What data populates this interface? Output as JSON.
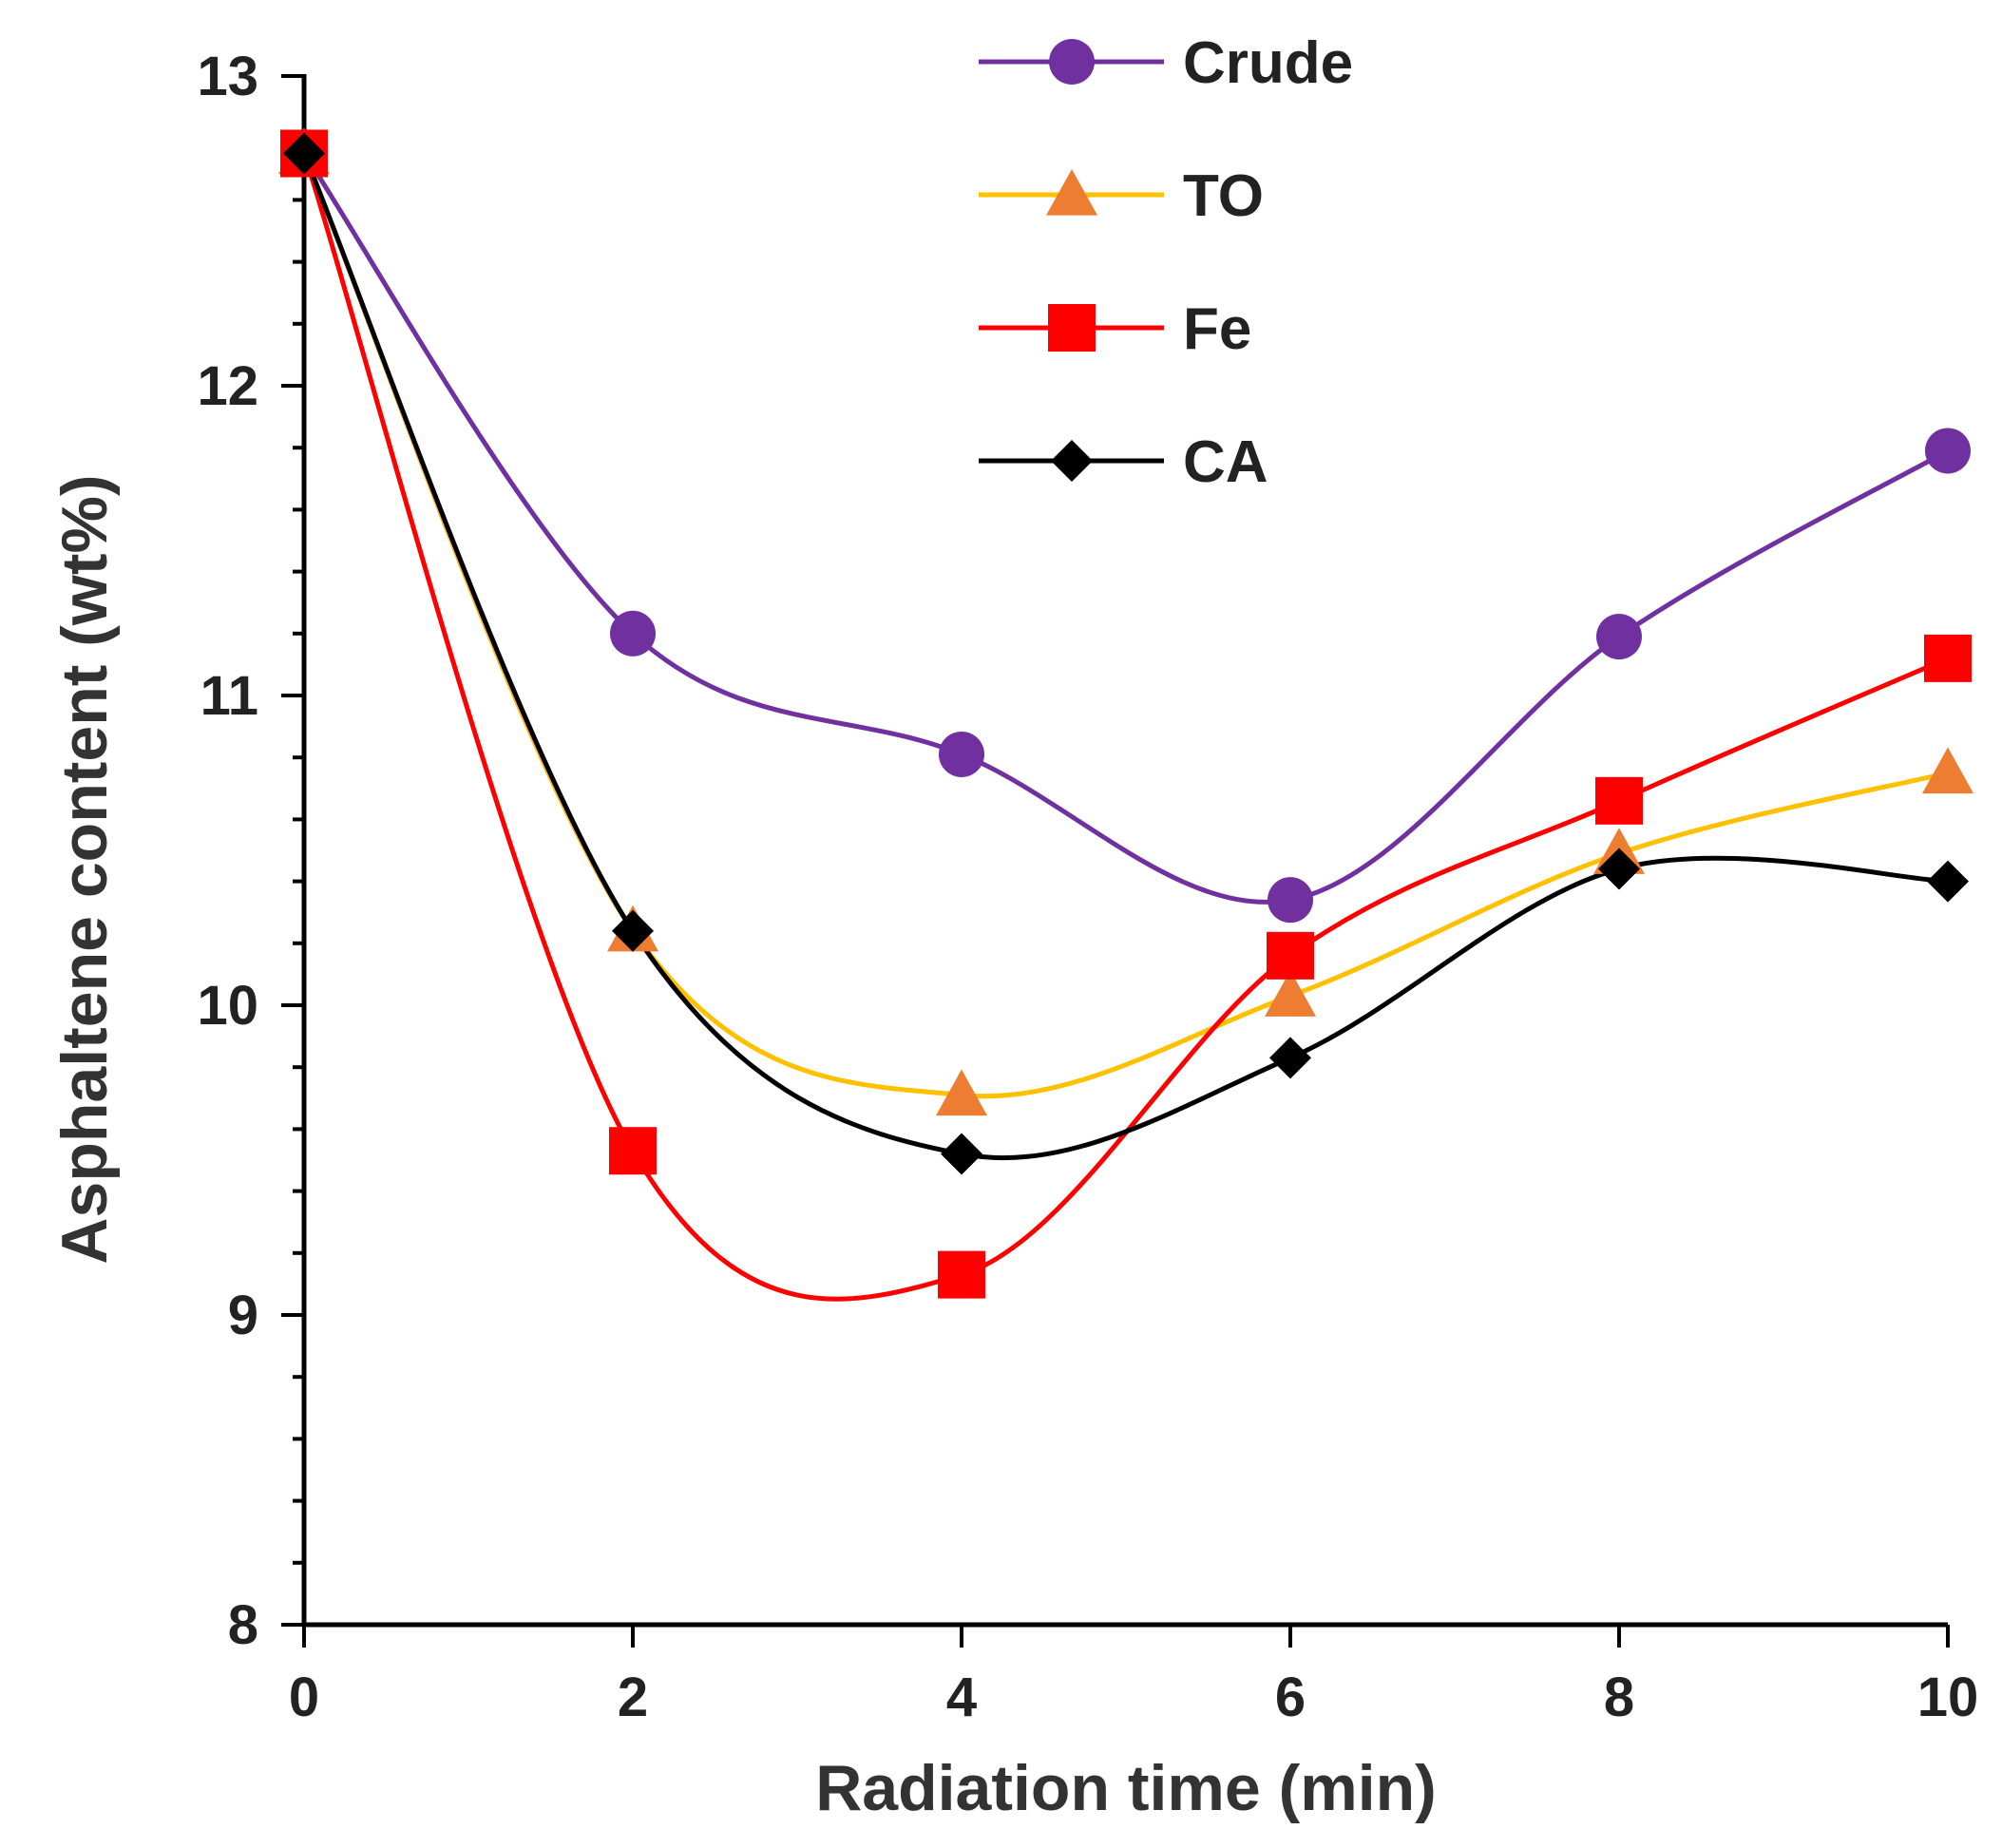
{
  "chart_data": {
    "type": "line",
    "smoothed": true,
    "xlabel": "Radiation time (min)",
    "ylabel": "Asphaltene content (wt%)",
    "xlim": [
      0,
      10
    ],
    "ylim": [
      8,
      13
    ],
    "xticks": [
      0,
      2,
      4,
      6,
      8,
      10
    ],
    "yticks": [
      8,
      9,
      10,
      11,
      12,
      13
    ],
    "y_minor_step": 0.2,
    "grid": false,
    "legend_position": "top-center",
    "x": [
      0,
      2,
      4,
      6,
      8,
      10
    ],
    "series": [
      {
        "name": "Crude",
        "marker": "circle",
        "line_color": "#7030A0",
        "marker_color": "#7030A0",
        "values": [
          12.75,
          11.2,
          10.81,
          10.34,
          11.19,
          11.79
        ]
      },
      {
        "name": "TO",
        "marker": "triangle",
        "line_color": "#FFC000",
        "marker_color": "#ED7D31",
        "values": [
          12.75,
          10.24,
          9.71,
          10.03,
          10.49,
          10.75
        ]
      },
      {
        "name": "Fe",
        "marker": "square",
        "line_color": "#FF0000",
        "marker_color": "#FF0000",
        "values": [
          12.75,
          9.53,
          9.13,
          10.16,
          10.66,
          11.12
        ]
      },
      {
        "name": "CA",
        "marker": "diamond",
        "line_color": "#000000",
        "marker_color": "#000000",
        "values": [
          12.75,
          10.24,
          9.52,
          9.83,
          10.44,
          10.4
        ]
      }
    ]
  }
}
